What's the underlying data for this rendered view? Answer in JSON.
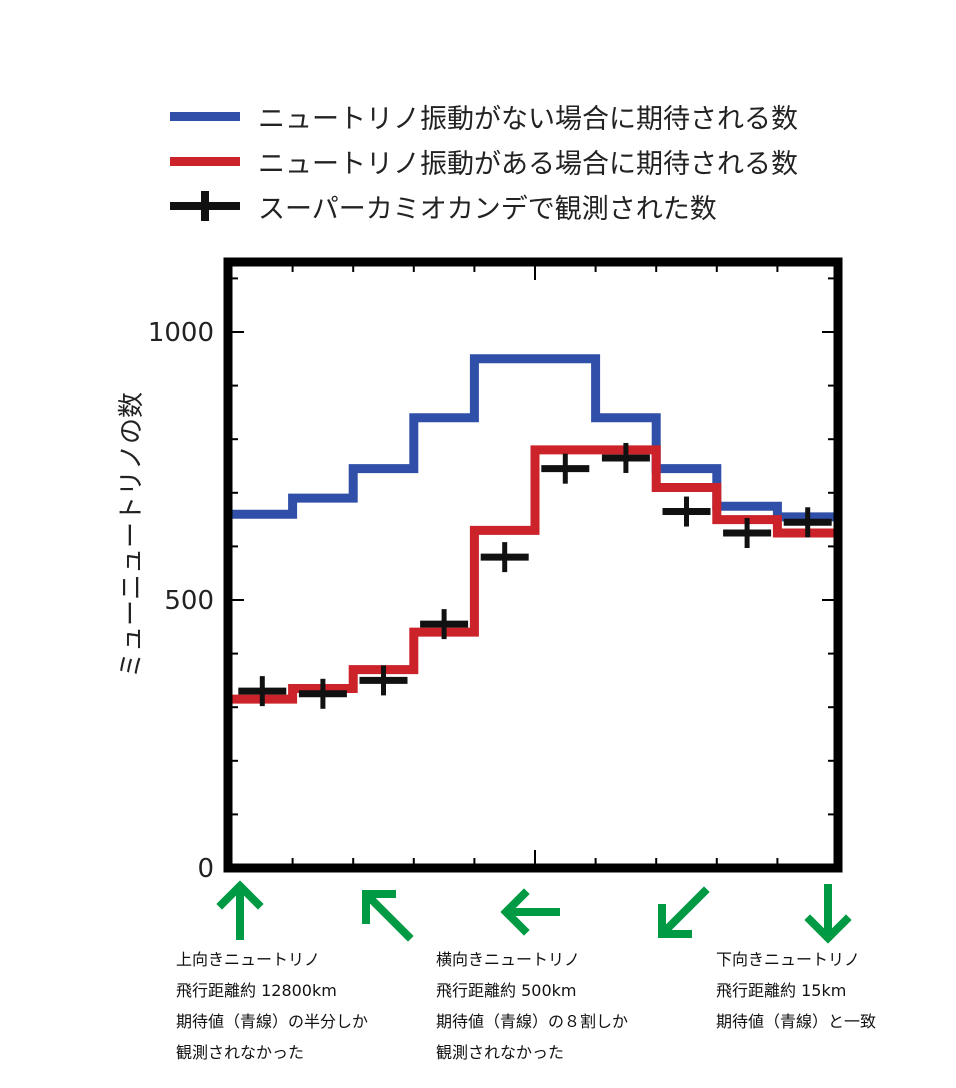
{
  "legend": [
    {
      "label": "ニュートリノ振動がない場合に期待される数",
      "kind": "line",
      "color": "#2f4fa8"
    },
    {
      "label": "ニュートリノ振動がある場合に期待される数",
      "kind": "line",
      "color": "#cc2229"
    },
    {
      "label": "スーパーカミオカンデで観測された数",
      "kind": "cross",
      "color": "#111111"
    }
  ],
  "chart_data": {
    "type": "line",
    "ylabel": "ミューニュートリノの数",
    "ylim": [
      0,
      1150
    ],
    "y_ticks": [
      0,
      500,
      1000
    ],
    "bins": 10,
    "series": [
      {
        "name": "ニュートリノ振動がない場合に期待される数",
        "color": "#2f4fa8",
        "values": [
          660,
          690,
          745,
          840,
          950,
          950,
          840,
          745,
          675,
          655
        ]
      },
      {
        "name": "ニュートリノ振動がある場合に期待される数",
        "color": "#cc2229",
        "values": [
          315,
          335,
          370,
          440,
          630,
          780,
          780,
          710,
          650,
          625
        ]
      },
      {
        "name": "スーパーカミオカンデで観測された数",
        "color": "#111111",
        "kind": "points",
        "values": [
          330,
          325,
          350,
          455,
          580,
          745,
          765,
          665,
          625,
          645
        ]
      }
    ]
  },
  "annotations": [
    {
      "arrow": "up",
      "color": "#009944"
    },
    {
      "arrow": "up-left",
      "color": "#009944"
    },
    {
      "arrow": "left",
      "color": "#009944"
    },
    {
      "arrow": "down-left",
      "color": "#009944"
    },
    {
      "arrow": "down",
      "color": "#009944"
    }
  ],
  "captions": [
    {
      "lines": [
        "上向きニュートリノ",
        "飛行距離約 12800km",
        "期待値（青線）の半分しか",
        "観測されなかった"
      ]
    },
    {
      "lines": [
        "横向きニュートリノ",
        "飛行距離約 500km",
        "期待値（青線）の８割しか",
        "観測されなかった"
      ]
    },
    {
      "lines": [
        "下向きニュートリノ",
        "飛行距離約 15km",
        "期待値（青線）と一致"
      ]
    }
  ]
}
